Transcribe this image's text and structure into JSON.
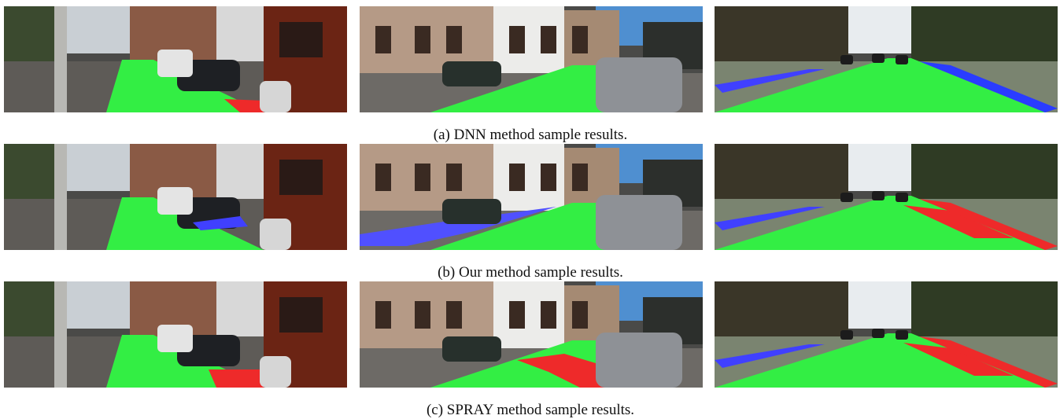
{
  "figure": {
    "rows": [
      {
        "caption": "(a) DNN method sample results."
      },
      {
        "caption": "(b) Our method sample results."
      },
      {
        "caption": "(c) SPRAY method sample results."
      }
    ]
  }
}
